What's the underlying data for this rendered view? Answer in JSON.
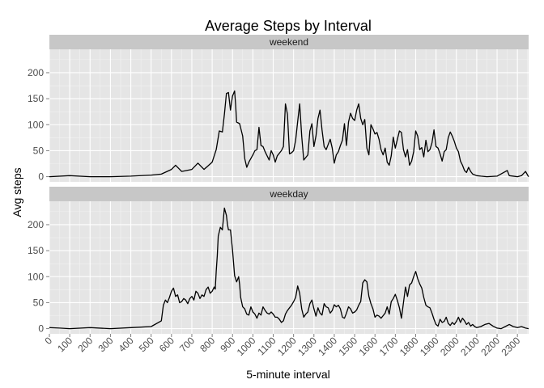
{
  "chart_data": {
    "type": "line",
    "title": "Average Steps by Interval",
    "xlabel": "5-minute interval",
    "ylabel": "Avg steps",
    "xlim": [
      0,
      2355
    ],
    "ylim": [
      -10,
      245
    ],
    "x_ticks": [
      0,
      100,
      200,
      300,
      400,
      500,
      600,
      700,
      800,
      900,
      1000,
      1100,
      1200,
      1300,
      1400,
      1500,
      1600,
      1700,
      1800,
      1900,
      2000,
      2100,
      2200,
      2300
    ],
    "y_ticks": [
      0,
      50,
      100,
      150,
      200
    ],
    "grid": true,
    "legend": "none",
    "colors": {
      "panel_bg": "#e5e5e5",
      "strip_bg": "#c7c7c7",
      "grid": "#ffffff",
      "line": "#000000"
    },
    "panels": [
      {
        "label": "weekend",
        "points": [
          [
            0,
            0
          ],
          [
            100,
            2
          ],
          [
            200,
            0
          ],
          [
            300,
            0
          ],
          [
            400,
            1
          ],
          [
            500,
            3
          ],
          [
            550,
            5
          ],
          [
            600,
            14
          ],
          [
            620,
            22
          ],
          [
            650,
            10
          ],
          [
            700,
            14
          ],
          [
            730,
            26
          ],
          [
            760,
            14
          ],
          [
            800,
            28
          ],
          [
            820,
            52
          ],
          [
            835,
            88
          ],
          [
            850,
            86
          ],
          [
            860,
            120
          ],
          [
            870,
            160
          ],
          [
            880,
            162
          ],
          [
            890,
            128
          ],
          [
            900,
            155
          ],
          [
            910,
            165
          ],
          [
            915,
            140
          ],
          [
            920,
            105
          ],
          [
            935,
            102
          ],
          [
            950,
            78
          ],
          [
            960,
            35
          ],
          [
            970,
            18
          ],
          [
            980,
            28
          ],
          [
            1000,
            42
          ],
          [
            1010,
            50
          ],
          [
            1020,
            52
          ],
          [
            1030,
            95
          ],
          [
            1040,
            60
          ],
          [
            1050,
            58
          ],
          [
            1060,
            48
          ],
          [
            1080,
            32
          ],
          [
            1090,
            50
          ],
          [
            1100,
            42
          ],
          [
            1110,
            28
          ],
          [
            1120,
            40
          ],
          [
            1140,
            50
          ],
          [
            1150,
            58
          ],
          [
            1160,
            140
          ],
          [
            1170,
            120
          ],
          [
            1180,
            44
          ],
          [
            1190,
            46
          ],
          [
            1200,
            50
          ],
          [
            1210,
            70
          ],
          [
            1220,
            106
          ],
          [
            1230,
            140
          ],
          [
            1240,
            78
          ],
          [
            1250,
            32
          ],
          [
            1270,
            42
          ],
          [
            1280,
            88
          ],
          [
            1290,
            102
          ],
          [
            1300,
            58
          ],
          [
            1310,
            78
          ],
          [
            1320,
            112
          ],
          [
            1330,
            128
          ],
          [
            1340,
            90
          ],
          [
            1350,
            58
          ],
          [
            1360,
            52
          ],
          [
            1380,
            72
          ],
          [
            1390,
            55
          ],
          [
            1400,
            26
          ],
          [
            1410,
            42
          ],
          [
            1420,
            48
          ],
          [
            1430,
            60
          ],
          [
            1440,
            70
          ],
          [
            1450,
            102
          ],
          [
            1460,
            60
          ],
          [
            1470,
            105
          ],
          [
            1480,
            122
          ],
          [
            1490,
            112
          ],
          [
            1500,
            108
          ],
          [
            1510,
            128
          ],
          [
            1520,
            140
          ],
          [
            1530,
            112
          ],
          [
            1540,
            100
          ],
          [
            1550,
            110
          ],
          [
            1560,
            55
          ],
          [
            1570,
            42
          ],
          [
            1580,
            100
          ],
          [
            1590,
            92
          ],
          [
            1600,
            82
          ],
          [
            1610,
            85
          ],
          [
            1620,
            72
          ],
          [
            1630,
            52
          ],
          [
            1640,
            42
          ],
          [
            1650,
            55
          ],
          [
            1660,
            28
          ],
          [
            1670,
            22
          ],
          [
            1680,
            40
          ],
          [
            1690,
            76
          ],
          [
            1700,
            55
          ],
          [
            1710,
            72
          ],
          [
            1720,
            88
          ],
          [
            1730,
            85
          ],
          [
            1740,
            52
          ],
          [
            1750,
            38
          ],
          [
            1760,
            52
          ],
          [
            1770,
            22
          ],
          [
            1780,
            30
          ],
          [
            1790,
            48
          ],
          [
            1800,
            88
          ],
          [
            1810,
            78
          ],
          [
            1820,
            52
          ],
          [
            1830,
            56
          ],
          [
            1840,
            38
          ],
          [
            1850,
            70
          ],
          [
            1860,
            48
          ],
          [
            1870,
            52
          ],
          [
            1880,
            65
          ],
          [
            1890,
            90
          ],
          [
            1900,
            58
          ],
          [
            1910,
            55
          ],
          [
            1920,
            44
          ],
          [
            1930,
            30
          ],
          [
            1940,
            48
          ],
          [
            1950,
            52
          ],
          [
            1960,
            75
          ],
          [
            1970,
            86
          ],
          [
            1980,
            78
          ],
          [
            1990,
            68
          ],
          [
            2000,
            55
          ],
          [
            2010,
            48
          ],
          [
            2020,
            30
          ],
          [
            2030,
            22
          ],
          [
            2040,
            12
          ],
          [
            2050,
            8
          ],
          [
            2060,
            18
          ],
          [
            2070,
            10
          ],
          [
            2080,
            5
          ],
          [
            2100,
            2
          ],
          [
            2120,
            1
          ],
          [
            2150,
            0
          ],
          [
            2200,
            1
          ],
          [
            2250,
            12
          ],
          [
            2260,
            2
          ],
          [
            2300,
            0
          ],
          [
            2320,
            2
          ],
          [
            2340,
            10
          ],
          [
            2350,
            3
          ],
          [
            2355,
            0
          ]
        ]
      },
      {
        "label": "weekday",
        "points": [
          [
            0,
            2
          ],
          [
            50,
            1
          ],
          [
            100,
            0
          ],
          [
            200,
            2
          ],
          [
            300,
            0
          ],
          [
            400,
            2
          ],
          [
            500,
            4
          ],
          [
            550,
            15
          ],
          [
            560,
            45
          ],
          [
            570,
            55
          ],
          [
            580,
            50
          ],
          [
            590,
            60
          ],
          [
            600,
            72
          ],
          [
            610,
            78
          ],
          [
            620,
            62
          ],
          [
            630,
            65
          ],
          [
            640,
            50
          ],
          [
            650,
            52
          ],
          [
            660,
            58
          ],
          [
            670,
            55
          ],
          [
            680,
            48
          ],
          [
            690,
            58
          ],
          [
            700,
            62
          ],
          [
            710,
            55
          ],
          [
            720,
            72
          ],
          [
            730,
            68
          ],
          [
            740,
            58
          ],
          [
            750,
            65
          ],
          [
            760,
            62
          ],
          [
            770,
            75
          ],
          [
            780,
            80
          ],
          [
            790,
            68
          ],
          [
            800,
            72
          ],
          [
            810,
            80
          ],
          [
            815,
            76
          ],
          [
            820,
            110
          ],
          [
            825,
            140
          ],
          [
            830,
            178
          ],
          [
            840,
            195
          ],
          [
            850,
            190
          ],
          [
            860,
            232
          ],
          [
            870,
            218
          ],
          [
            875,
            200
          ],
          [
            880,
            190
          ],
          [
            890,
            190
          ],
          [
            900,
            152
          ],
          [
            910,
            102
          ],
          [
            920,
            90
          ],
          [
            930,
            100
          ],
          [
            935,
            85
          ],
          [
            940,
            60
          ],
          [
            950,
            42
          ],
          [
            960,
            38
          ],
          [
            970,
            28
          ],
          [
            980,
            26
          ],
          [
            990,
            42
          ],
          [
            1000,
            32
          ],
          [
            1010,
            28
          ],
          [
            1020,
            20
          ],
          [
            1030,
            30
          ],
          [
            1040,
            26
          ],
          [
            1050,
            42
          ],
          [
            1060,
            35
          ],
          [
            1070,
            30
          ],
          [
            1080,
            28
          ],
          [
            1090,
            32
          ],
          [
            1100,
            28
          ],
          [
            1110,
            22
          ],
          [
            1120,
            22
          ],
          [
            1130,
            18
          ],
          [
            1140,
            12
          ],
          [
            1150,
            15
          ],
          [
            1160,
            28
          ],
          [
            1170,
            35
          ],
          [
            1180,
            40
          ],
          [
            1190,
            45
          ],
          [
            1200,
            52
          ],
          [
            1210,
            60
          ],
          [
            1220,
            82
          ],
          [
            1230,
            68
          ],
          [
            1240,
            38
          ],
          [
            1250,
            22
          ],
          [
            1260,
            28
          ],
          [
            1270,
            32
          ],
          [
            1280,
            48
          ],
          [
            1290,
            55
          ],
          [
            1300,
            38
          ],
          [
            1310,
            24
          ],
          [
            1320,
            40
          ],
          [
            1330,
            30
          ],
          [
            1340,
            26
          ],
          [
            1350,
            48
          ],
          [
            1360,
            42
          ],
          [
            1370,
            40
          ],
          [
            1380,
            30
          ],
          [
            1390,
            35
          ],
          [
            1400,
            46
          ],
          [
            1410,
            42
          ],
          [
            1420,
            45
          ],
          [
            1430,
            38
          ],
          [
            1440,
            22
          ],
          [
            1450,
            20
          ],
          [
            1460,
            30
          ],
          [
            1470,
            42
          ],
          [
            1480,
            38
          ],
          [
            1490,
            30
          ],
          [
            1500,
            32
          ],
          [
            1510,
            36
          ],
          [
            1520,
            45
          ],
          [
            1530,
            52
          ],
          [
            1540,
            88
          ],
          [
            1550,
            94
          ],
          [
            1560,
            90
          ],
          [
            1570,
            62
          ],
          [
            1580,
            48
          ],
          [
            1590,
            38
          ],
          [
            1600,
            22
          ],
          [
            1610,
            26
          ],
          [
            1620,
            24
          ],
          [
            1630,
            20
          ],
          [
            1640,
            25
          ],
          [
            1650,
            30
          ],
          [
            1660,
            42
          ],
          [
            1670,
            28
          ],
          [
            1680,
            52
          ],
          [
            1690,
            58
          ],
          [
            1700,
            66
          ],
          [
            1710,
            54
          ],
          [
            1720,
            40
          ],
          [
            1730,
            20
          ],
          [
            1740,
            50
          ],
          [
            1750,
            80
          ],
          [
            1760,
            62
          ],
          [
            1770,
            84
          ],
          [
            1780,
            88
          ],
          [
            1790,
            100
          ],
          [
            1800,
            110
          ],
          [
            1810,
            96
          ],
          [
            1820,
            86
          ],
          [
            1830,
            78
          ],
          [
            1840,
            60
          ],
          [
            1850,
            45
          ],
          [
            1860,
            42
          ],
          [
            1870,
            40
          ],
          [
            1880,
            30
          ],
          [
            1890,
            18
          ],
          [
            1900,
            8
          ],
          [
            1910,
            5
          ],
          [
            1920,
            18
          ],
          [
            1930,
            12
          ],
          [
            1940,
            14
          ],
          [
            1950,
            22
          ],
          [
            1960,
            10
          ],
          [
            1970,
            6
          ],
          [
            1980,
            12
          ],
          [
            1990,
            8
          ],
          [
            2000,
            14
          ],
          [
            2010,
            22
          ],
          [
            2020,
            12
          ],
          [
            2030,
            20
          ],
          [
            2040,
            15
          ],
          [
            2050,
            8
          ],
          [
            2060,
            12
          ],
          [
            2070,
            5
          ],
          [
            2080,
            8
          ],
          [
            2090,
            4
          ],
          [
            2100,
            2
          ],
          [
            2120,
            4
          ],
          [
            2140,
            8
          ],
          [
            2160,
            10
          ],
          [
            2180,
            5
          ],
          [
            2200,
            1
          ],
          [
            2220,
            0
          ],
          [
            2240,
            4
          ],
          [
            2260,
            8
          ],
          [
            2280,
            4
          ],
          [
            2300,
            2
          ],
          [
            2320,
            4
          ],
          [
            2340,
            1
          ],
          [
            2355,
            0
          ]
        ]
      }
    ]
  }
}
